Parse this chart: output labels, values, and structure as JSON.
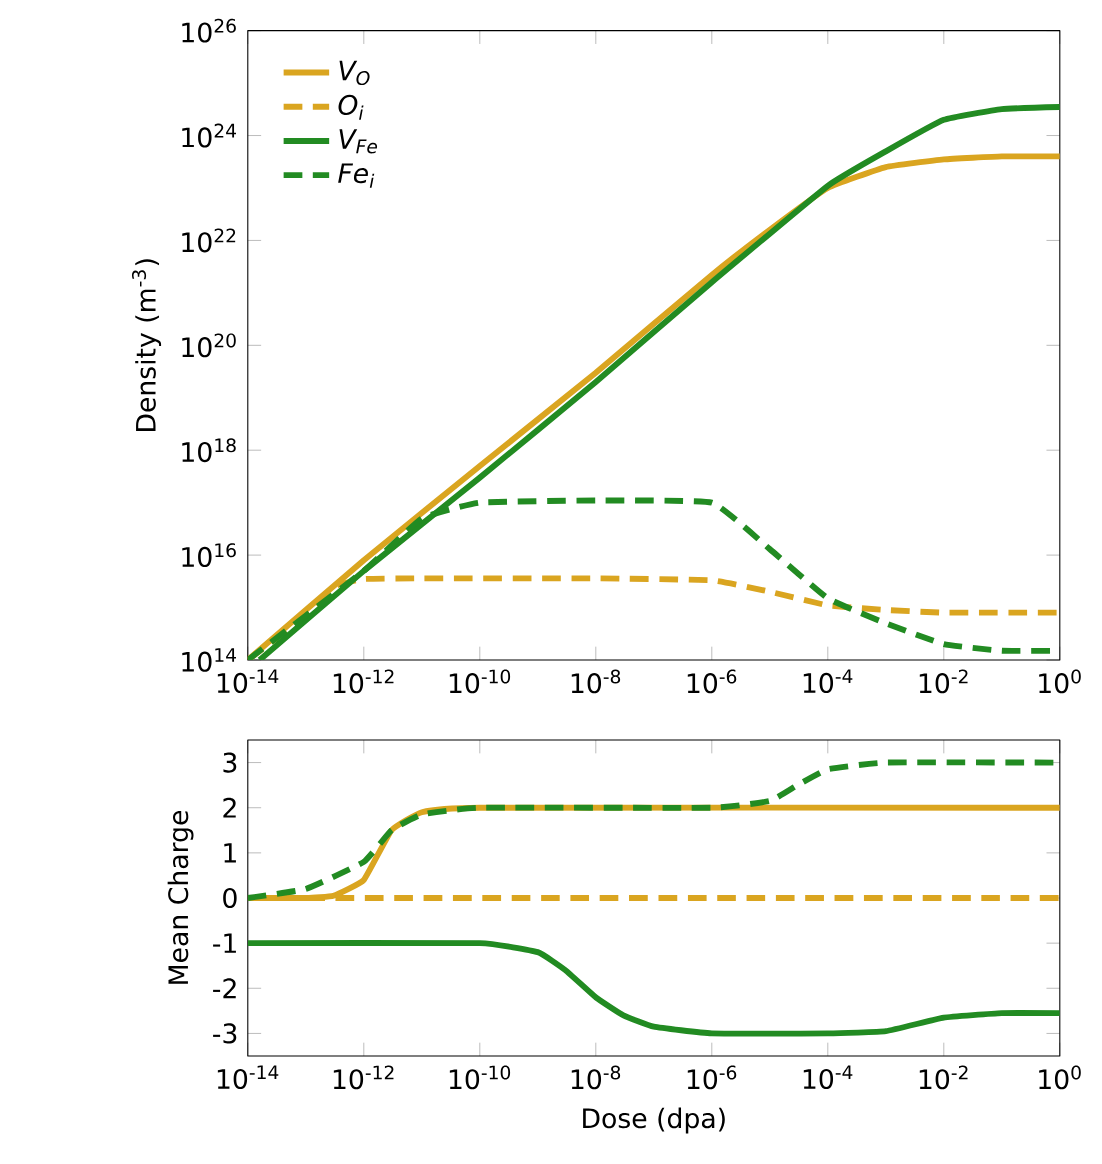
{
  "chart_data": [
    {
      "type": "line",
      "ylabel": "Density (m$^{-3}$)",
      "log": "xy",
      "legend": "top left",
      "xlim": [
        1e-14,
        1
      ],
      "ylim": [
        100000000000000.0,
        1e+26
      ],
      "xticks": [
        {
          "value": 1e-14,
          "label": "10$^{-14}$"
        },
        {
          "value": 1e-12,
          "label": "10$^{-12}$"
        },
        {
          "value": 1e-10,
          "label": "10$^{-10}$"
        },
        {
          "value": 1e-08,
          "label": "10$^{-8}$"
        },
        {
          "value": 1e-06,
          "label": "10$^{-6}$"
        },
        {
          "value": 0.0001,
          "label": "10$^{-4}$"
        },
        {
          "value": 0.01,
          "label": "10$^{-2}$"
        },
        {
          "value": 1,
          "label": "10$^{0}$"
        }
      ],
      "yticks": [
        {
          "value": 100000000000000.0,
          "label": "10$^{14}$"
        },
        {
          "value": 1e+16,
          "label": "10$^{16}$"
        },
        {
          "value": 1e+18,
          "label": "10$^{18}$"
        },
        {
          "value": 1e+20,
          "label": "10$^{20}$"
        },
        {
          "value": 1e+22,
          "label": "10$^{22}$"
        },
        {
          "value": 1e+24,
          "label": "10$^{24}$"
        },
        {
          "value": 1e+26,
          "label": "10$^{26}$"
        }
      ],
      "series": [
        {
          "name": "V$_{O}$",
          "color": "#daa520",
          "line_style": "solid",
          "x": [
            1e-14,
            1e-12,
            1e-10,
            1e-08,
            1e-06,
            1e-05,
            0.0001,
            0.001,
            0.01,
            0.1,
            1
          ],
          "values": [
            100000000000000.0,
            8000000000000000.0,
            5e+17,
            3e+19,
            2.2e+21,
            1.6e+22,
            1e+23,
            2.5e+23,
            3.5e+23,
            4e+23,
            4e+23
          ]
        },
        {
          "name": "O$_{i}$",
          "color": "#daa520",
          "line_style": "dashed",
          "x": [
            1e-14,
            1e-13,
            3e-13,
            1e-12,
            1e-11,
            1e-08,
            1e-06,
            1e-05,
            0.0001,
            0.001,
            0.01,
            1
          ],
          "values": [
            100000000000000.0,
            700000000000000.0,
            2500000000000000.0,
            3500000000000000.0,
            3600000000000000.0,
            3600000000000000.0,
            3300000000000000.0,
            2000000000000000.0,
            1100000000000000.0,
            900000000000000.0,
            800000000000000.0,
            800000000000000.0
          ]
        },
        {
          "name": "V$_{Fe}$",
          "color": "#228b22",
          "line_style": "solid",
          "x": [
            1.6e-14,
            1e-12,
            1e-10,
            1e-08,
            1e-06,
            0.0001,
            0.001,
            0.01,
            0.1,
            1
          ],
          "values": [
            100000000000000.0,
            5000000000000000.0,
            3e+17,
            2e+19,
            1.6e+21,
            1.1e+23,
            5e+23,
            2e+24,
            3.2e+24,
            3.5e+24
          ]
        },
        {
          "name": "Fe$_{i}$",
          "color": "#228b22",
          "line_style": "dashed",
          "x": [
            1e-14,
            1e-12,
            1e-11,
            1e-10,
            1e-08,
            1e-06,
            1e-05,
            0.0001,
            0.001,
            0.01,
            0.1,
            1
          ],
          "values": [
            100000000000000.0,
            5000000000000000.0,
            5e+16,
            1e+17,
            1.1e+17,
            1e+17,
            1.3e+16,
            1500000000000000.0,
            500000000000000.0,
            200000000000000.0,
            150000000000000.0,
            150000000000000.0
          ]
        }
      ]
    },
    {
      "type": "line",
      "xlabel": "Dose (dpa)",
      "ylabel": "Mean Charge",
      "log": "x",
      "xlim": [
        1e-14,
        1
      ],
      "ylim": [
        -3.5,
        3.5
      ],
      "xticks": [
        {
          "value": 1e-14,
          "label": "10$^{-14}$"
        },
        {
          "value": 1e-12,
          "label": "10$^{-12}$"
        },
        {
          "value": 1e-10,
          "label": "10$^{-10}$"
        },
        {
          "value": 1e-08,
          "label": "10$^{-8}$"
        },
        {
          "value": 1e-06,
          "label": "10$^{-6}$"
        },
        {
          "value": 0.0001,
          "label": "10$^{-4}$"
        },
        {
          "value": 0.01,
          "label": "10$^{-2}$"
        },
        {
          "value": 1,
          "label": "10$^{0}$"
        }
      ],
      "yticks": [
        -3,
        -2,
        -1,
        0,
        1,
        2,
        3
      ],
      "series": [
        {
          "color": "#daa520",
          "line_style": "solid",
          "x": [
            1e-14,
            1e-13,
            3e-13,
            1e-12,
            3e-12,
            1e-11,
            1e-10,
            1
          ],
          "values": [
            0,
            0,
            0.05,
            0.4,
            1.5,
            1.9,
            2,
            2
          ]
        },
        {
          "color": "#daa520",
          "line_style": "dashed",
          "x": [
            1e-14,
            1
          ],
          "values": [
            0,
            0
          ]
        },
        {
          "color": "#228b22",
          "line_style": "solid",
          "x": [
            1e-14,
            1e-10,
            1e-09,
            3e-09,
            1e-08,
            3e-08,
            1e-07,
            1e-06,
            0.0001,
            0.001,
            0.01,
            0.1,
            1
          ],
          "values": [
            -1,
            -1,
            -1.2,
            -1.6,
            -2.2,
            -2.6,
            -2.85,
            -3,
            -3,
            -2.95,
            -2.65,
            -2.55,
            -2.55
          ]
        },
        {
          "color": "#228b22",
          "line_style": "dashed",
          "x": [
            1e-14,
            1e-13,
            1e-12,
            3e-12,
            1e-11,
            1e-10,
            1e-06,
            1e-05,
            3e-05,
            0.0001,
            0.001,
            1
          ],
          "values": [
            0,
            0.2,
            0.8,
            1.5,
            1.85,
            2,
            2,
            2.15,
            2.5,
            2.85,
            3,
            3
          ]
        }
      ]
    }
  ]
}
